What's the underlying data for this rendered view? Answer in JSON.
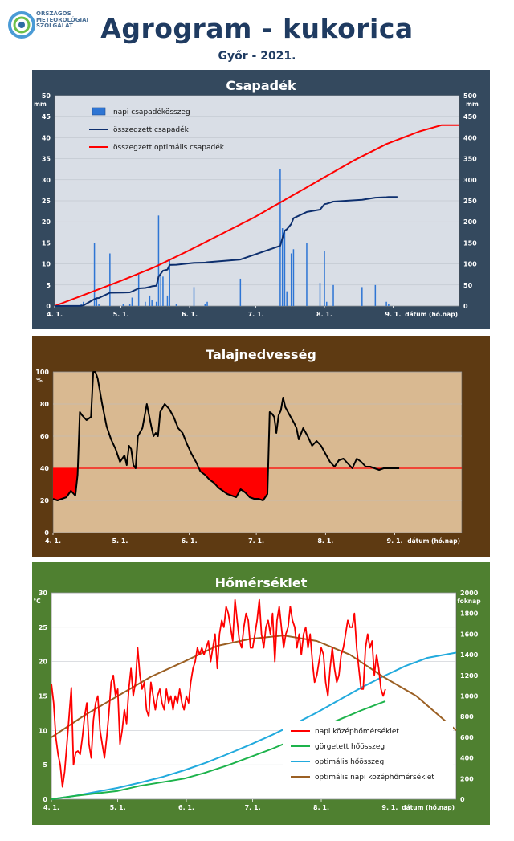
{
  "header": {
    "logo_lines": [
      "ORSZÁGOS",
      "METEOROLÓGIAI",
      "SZOLGÁLAT"
    ],
    "title": "Agrogram - kukorica",
    "subtitle": "Győr - 2021."
  },
  "colors": {
    "precip_frame": "#34495e",
    "precip_plot": "#d9dee6",
    "soil_frame": "#5e3a12",
    "soil_plot": "#d9b991",
    "temp_frame": "#4f8030",
    "temp_plot": "#ffffff"
  },
  "chart_data": [
    {
      "type": "bar",
      "title": "Csapadék",
      "ylabel": "mm",
      "y2label": "mm",
      "xlabel": "dátum (hó.nap)",
      "ylim": [
        0,
        50
      ],
      "y2lim": [
        0,
        500
      ],
      "yticks": [
        0,
        5,
        10,
        15,
        20,
        25,
        30,
        35,
        40,
        45,
        50
      ],
      "y2ticks": [
        0,
        50,
        100,
        150,
        200,
        250,
        300,
        350,
        400,
        450,
        500
      ],
      "xlim": [
        0,
        183
      ],
      "xticks": [
        {
          "x": 0,
          "label": "4. 1."
        },
        {
          "x": 30,
          "label": "5. 1."
        },
        {
          "x": 61,
          "label": "6. 1."
        },
        {
          "x": 91,
          "label": "7. 1."
        },
        {
          "x": 122,
          "label": "8. 1."
        },
        {
          "x": 153,
          "label": "9. 1."
        }
      ],
      "legend": [
        "napi csapadékösszeg",
        "összegzett csapadék",
        "összegzett optimális csapadék"
      ],
      "series": [
        {
          "name": "napi csapadékösszeg",
          "type": "bar",
          "color": "#2e75d4",
          "x": [
            12,
            13,
            18,
            19,
            20,
            25,
            31,
            34,
            35,
            38,
            41,
            43,
            44,
            46,
            47,
            48,
            49,
            51,
            52,
            55,
            63,
            68,
            69,
            84,
            102,
            103,
            104,
            105,
            107,
            108,
            114,
            120,
            122,
            123,
            126,
            139,
            145,
            150,
            151
          ],
          "values": [
            0.5,
            1.0,
            15.0,
            2.0,
            0.5,
            12.5,
            0.5,
            0.5,
            2.0,
            7.5,
            1.0,
            2.5,
            1.5,
            1.0,
            21.5,
            7.5,
            7.0,
            2.5,
            11.0,
            0.5,
            4.5,
            0.5,
            1.0,
            6.5,
            32.5,
            18.5,
            17.5,
            3.5,
            12.5,
            13.5,
            15.0,
            5.5,
            13.0,
            1.0,
            5.0,
            4.5,
            5.0,
            1.0,
            0.5
          ]
        },
        {
          "name": "összegzett csapadék",
          "type": "line",
          "axis": "right",
          "color": "#0d2f6e",
          "x": [
            0,
            12,
            13,
            18,
            19,
            20,
            25,
            31,
            34,
            35,
            38,
            41,
            43,
            44,
            46,
            47,
            48,
            49,
            51,
            52,
            55,
            63,
            68,
            69,
            84,
            102,
            103,
            104,
            105,
            107,
            108,
            114,
            120,
            122,
            123,
            126,
            139,
            145,
            150,
            151,
            155
          ],
          "values": [
            0,
            0.5,
            1.5,
            16.5,
            18.5,
            19,
            31.5,
            32,
            32.5,
            34.5,
            42,
            43,
            45.5,
            47,
            48,
            69.5,
            77,
            84,
            86.5,
            97.5,
            98,
            102.5,
            103,
            104,
            110.5,
            143,
            161.5,
            179,
            182.5,
            195,
            208.5,
            223.5,
            229,
            242,
            243,
            248,
            252.5,
            257.5,
            258.5,
            259,
            259
          ]
        },
        {
          "name": "összegzett optimális csapadék",
          "type": "line",
          "axis": "right",
          "color": "#ff0000",
          "x": [
            0,
            15,
            30,
            45,
            60,
            75,
            90,
            105,
            120,
            135,
            150,
            165,
            175,
            183
          ],
          "values": [
            0,
            30,
            60,
            92,
            130,
            170,
            210,
            255,
            300,
            345,
            385,
            415,
            430,
            430
          ]
        }
      ]
    },
    {
      "type": "line",
      "title": "Talajnedvesség",
      "ylabel": "%",
      "xlabel": "dátum (hó.nap)",
      "ylim": [
        0,
        100
      ],
      "yticks": [
        0,
        20,
        40,
        60,
        80,
        100
      ],
      "xlim": [
        0,
        183
      ],
      "xticks": [
        {
          "x": 0,
          "label": "4. 1."
        },
        {
          "x": 30,
          "label": "5. 1."
        },
        {
          "x": 61,
          "label": "6. 1."
        },
        {
          "x": 91,
          "label": "7. 1."
        },
        {
          "x": 122,
          "label": "8. 1."
        },
        {
          "x": 153,
          "label": "9. 1."
        }
      ],
      "threshold": {
        "value": 40,
        "color": "#ff0000",
        "fill": "#ff0000"
      },
      "series": [
        {
          "name": "talajnedvesség",
          "color": "#000000",
          "x": [
            0,
            2,
            4,
            6,
            8,
            10,
            11,
            12,
            13,
            15,
            17,
            18,
            19,
            20,
            22,
            24,
            26,
            28,
            30,
            32,
            33,
            34,
            35,
            36,
            37,
            38,
            40,
            42,
            44,
            45,
            46,
            47,
            48,
            50,
            52,
            54,
            56,
            58,
            60,
            62,
            64,
            66,
            68,
            70,
            72,
            74,
            76,
            78,
            80,
            82,
            84,
            86,
            88,
            90,
            92,
            94,
            96,
            97,
            98,
            99,
            100,
            101,
            102,
            103,
            104,
            106,
            108,
            109,
            110,
            112,
            114,
            116,
            118,
            120,
            122,
            124,
            126,
            128,
            130,
            132,
            134,
            136,
            138,
            140,
            142,
            144,
            146,
            148,
            150,
            152,
            153,
            155
          ],
          "values": [
            21,
            20,
            21,
            22,
            26,
            23,
            36,
            75,
            73,
            70,
            72,
            100,
            100,
            96,
            80,
            66,
            58,
            52,
            44,
            48,
            42,
            54,
            52,
            42,
            40,
            60,
            65,
            80,
            66,
            60,
            62,
            60,
            75,
            80,
            77,
            72,
            65,
            62,
            55,
            49,
            44,
            38,
            36,
            33,
            31,
            28,
            26,
            24,
            23,
            22,
            27,
            25,
            22,
            21,
            21,
            20,
            24,
            75,
            74,
            72,
            62,
            73,
            76,
            84,
            78,
            73,
            68,
            65,
            58,
            65,
            60,
            54,
            57,
            54,
            49,
            44,
            41,
            45,
            46,
            43,
            40,
            46,
            44,
            41,
            41,
            40,
            39,
            40,
            40,
            40,
            40,
            40
          ]
        }
      ]
    },
    {
      "type": "line",
      "title": "Hőmérséklet",
      "ylabel": "°C",
      "y2label": "foknap",
      "xlabel": "dátum (hó.nap)",
      "ylim": [
        0,
        30
      ],
      "y2lim": [
        0,
        2000
      ],
      "yticks": [
        0,
        5,
        10,
        15,
        20,
        25,
        30
      ],
      "y2ticks": [
        0,
        200,
        400,
        600,
        800,
        1000,
        1200,
        1400,
        1600,
        1800,
        2000
      ],
      "xlim": [
        0,
        183
      ],
      "xticks": [
        {
          "x": 0,
          "label": "4. 1."
        },
        {
          "x": 30,
          "label": "5. 1."
        },
        {
          "x": 61,
          "label": "6. 1."
        },
        {
          "x": 91,
          "label": "7. 1."
        },
        {
          "x": 122,
          "label": "8. 1."
        },
        {
          "x": 153,
          "label": "9. 1."
        }
      ],
      "legend": [
        "napi középhőmérséklet",
        "görgetett hőösszeg",
        "optimális hőösszeg",
        "optimális napi középhőmérséklet"
      ],
      "series": [
        {
          "name": "napi középhőmérséklet",
          "axis": "left",
          "color": "#ff0000",
          "x": [
            0,
            1,
            2,
            3,
            4,
            5,
            6,
            7,
            8,
            9,
            10,
            11,
            12,
            13,
            14,
            15,
            16,
            17,
            18,
            19,
            20,
            21,
            22,
            23,
            24,
            25,
            26,
            27,
            28,
            29,
            30,
            31,
            32,
            33,
            34,
            35,
            36,
            37,
            38,
            39,
            40,
            41,
            42,
            43,
            44,
            45,
            46,
            47,
            48,
            49,
            50,
            51,
            52,
            53,
            54,
            55,
            56,
            57,
            58,
            59,
            60,
            61,
            62,
            63,
            64,
            65,
            66,
            67,
            68,
            69,
            70,
            71,
            72,
            73,
            74,
            75,
            76,
            77,
            78,
            79,
            80,
            81,
            82,
            83,
            84,
            85,
            86,
            87,
            88,
            89,
            90,
            91,
            92,
            93,
            94,
            95,
            96,
            97,
            98,
            99,
            100,
            101,
            102,
            103,
            104,
            105,
            106,
            107,
            108,
            109,
            110,
            111,
            112,
            113,
            114,
            115,
            116,
            117,
            118,
            119,
            120,
            121,
            122,
            123,
            124,
            125,
            126,
            127,
            128,
            129,
            130,
            131,
            132,
            133,
            134,
            135,
            136,
            137,
            138,
            139,
            140,
            141,
            142,
            143,
            144,
            145,
            146,
            147,
            148,
            149,
            150,
            151
          ],
          "values": [
            16.8,
            14.0,
            9.0,
            6.5,
            5.0,
            1.8,
            4.0,
            8.0,
            12.0,
            16.2,
            5.0,
            6.8,
            7.0,
            6.5,
            9.0,
            12.0,
            14.0,
            8.0,
            6.0,
            11.5,
            14.0,
            15.0,
            10.0,
            8.0,
            6.0,
            9.0,
            12.5,
            17.0,
            18.0,
            15.0,
            16.0,
            8.0,
            10.0,
            13.0,
            11.0,
            16.0,
            19.0,
            15.0,
            17.0,
            22.0,
            18.0,
            16.0,
            17.0,
            13.0,
            12.0,
            17.0,
            15.0,
            13.0,
            15.0,
            16.0,
            14.0,
            13.0,
            16.0,
            14.0,
            15.0,
            13.0,
            15.0,
            14.0,
            16.0,
            14.0,
            13.0,
            15.0,
            14.0,
            17.0,
            19.0,
            20.0,
            22.0,
            21.0,
            22.0,
            21.0,
            22.0,
            23.0,
            20.0,
            22.0,
            24.0,
            19.0,
            24.0,
            26.0,
            25.0,
            28.0,
            27.0,
            25.0,
            23.0,
            29.0,
            26.0,
            23.0,
            22.0,
            25.0,
            27.0,
            26.0,
            22.0,
            22.0,
            24.0,
            26.0,
            29.0,
            24.0,
            22.0,
            25.0,
            26.0,
            24.0,
            27.0,
            20.0,
            26.0,
            28.0,
            25.0,
            22.0,
            24.0,
            25.0,
            28.0,
            26.0,
            25.0,
            22.0,
            24.0,
            21.0,
            24.0,
            25.0,
            22.0,
            24.0,
            20.0,
            17.0,
            18.0,
            20.0,
            22.0,
            21.0,
            17.0,
            15.0,
            19.0,
            22.0,
            19.0,
            17.0,
            18.0,
            21.0,
            22.0,
            24.0,
            26.0,
            25.0,
            25.0,
            27.0,
            22.0,
            19.0,
            16.0,
            16.0,
            22.0,
            24.0,
            22.0,
            23.0,
            18.0,
            21.0,
            19.0,
            16.0,
            15.0,
            16.0
          ]
        },
        {
          "name": "görgetett hőösszeg",
          "axis": "right",
          "color": "#1db34b",
          "x": [
            0,
            10,
            20,
            30,
            40,
            50,
            60,
            70,
            80,
            90,
            100,
            110,
            120,
            130,
            140,
            151
          ],
          "values": [
            0,
            30,
            55,
            80,
            130,
            165,
            200,
            260,
            330,
            410,
            490,
            580,
            680,
            770,
            860,
            950
          ]
        },
        {
          "name": "optimális hőösszeg",
          "axis": "right",
          "color": "#22aadd",
          "x": [
            0,
            10,
            20,
            30,
            40,
            50,
            60,
            70,
            80,
            90,
            100,
            110,
            120,
            130,
            140,
            150,
            160,
            170,
            183
          ],
          "values": [
            0,
            30,
            70,
            110,
            160,
            215,
            280,
            355,
            440,
            530,
            625,
            730,
            840,
            960,
            1080,
            1190,
            1290,
            1370,
            1420
          ]
        },
        {
          "name": "optimális napi középhőmérséklet",
          "axis": "left",
          "color": "#9b6024",
          "x": [
            0,
            15,
            30,
            45,
            60,
            75,
            90,
            105,
            120,
            135,
            150,
            165,
            183
          ],
          "values": [
            9.0,
            12.2,
            15.0,
            17.8,
            20.0,
            22.3,
            23.3,
            23.8,
            23.0,
            21.0,
            17.8,
            15.0,
            10.0
          ]
        }
      ]
    }
  ]
}
